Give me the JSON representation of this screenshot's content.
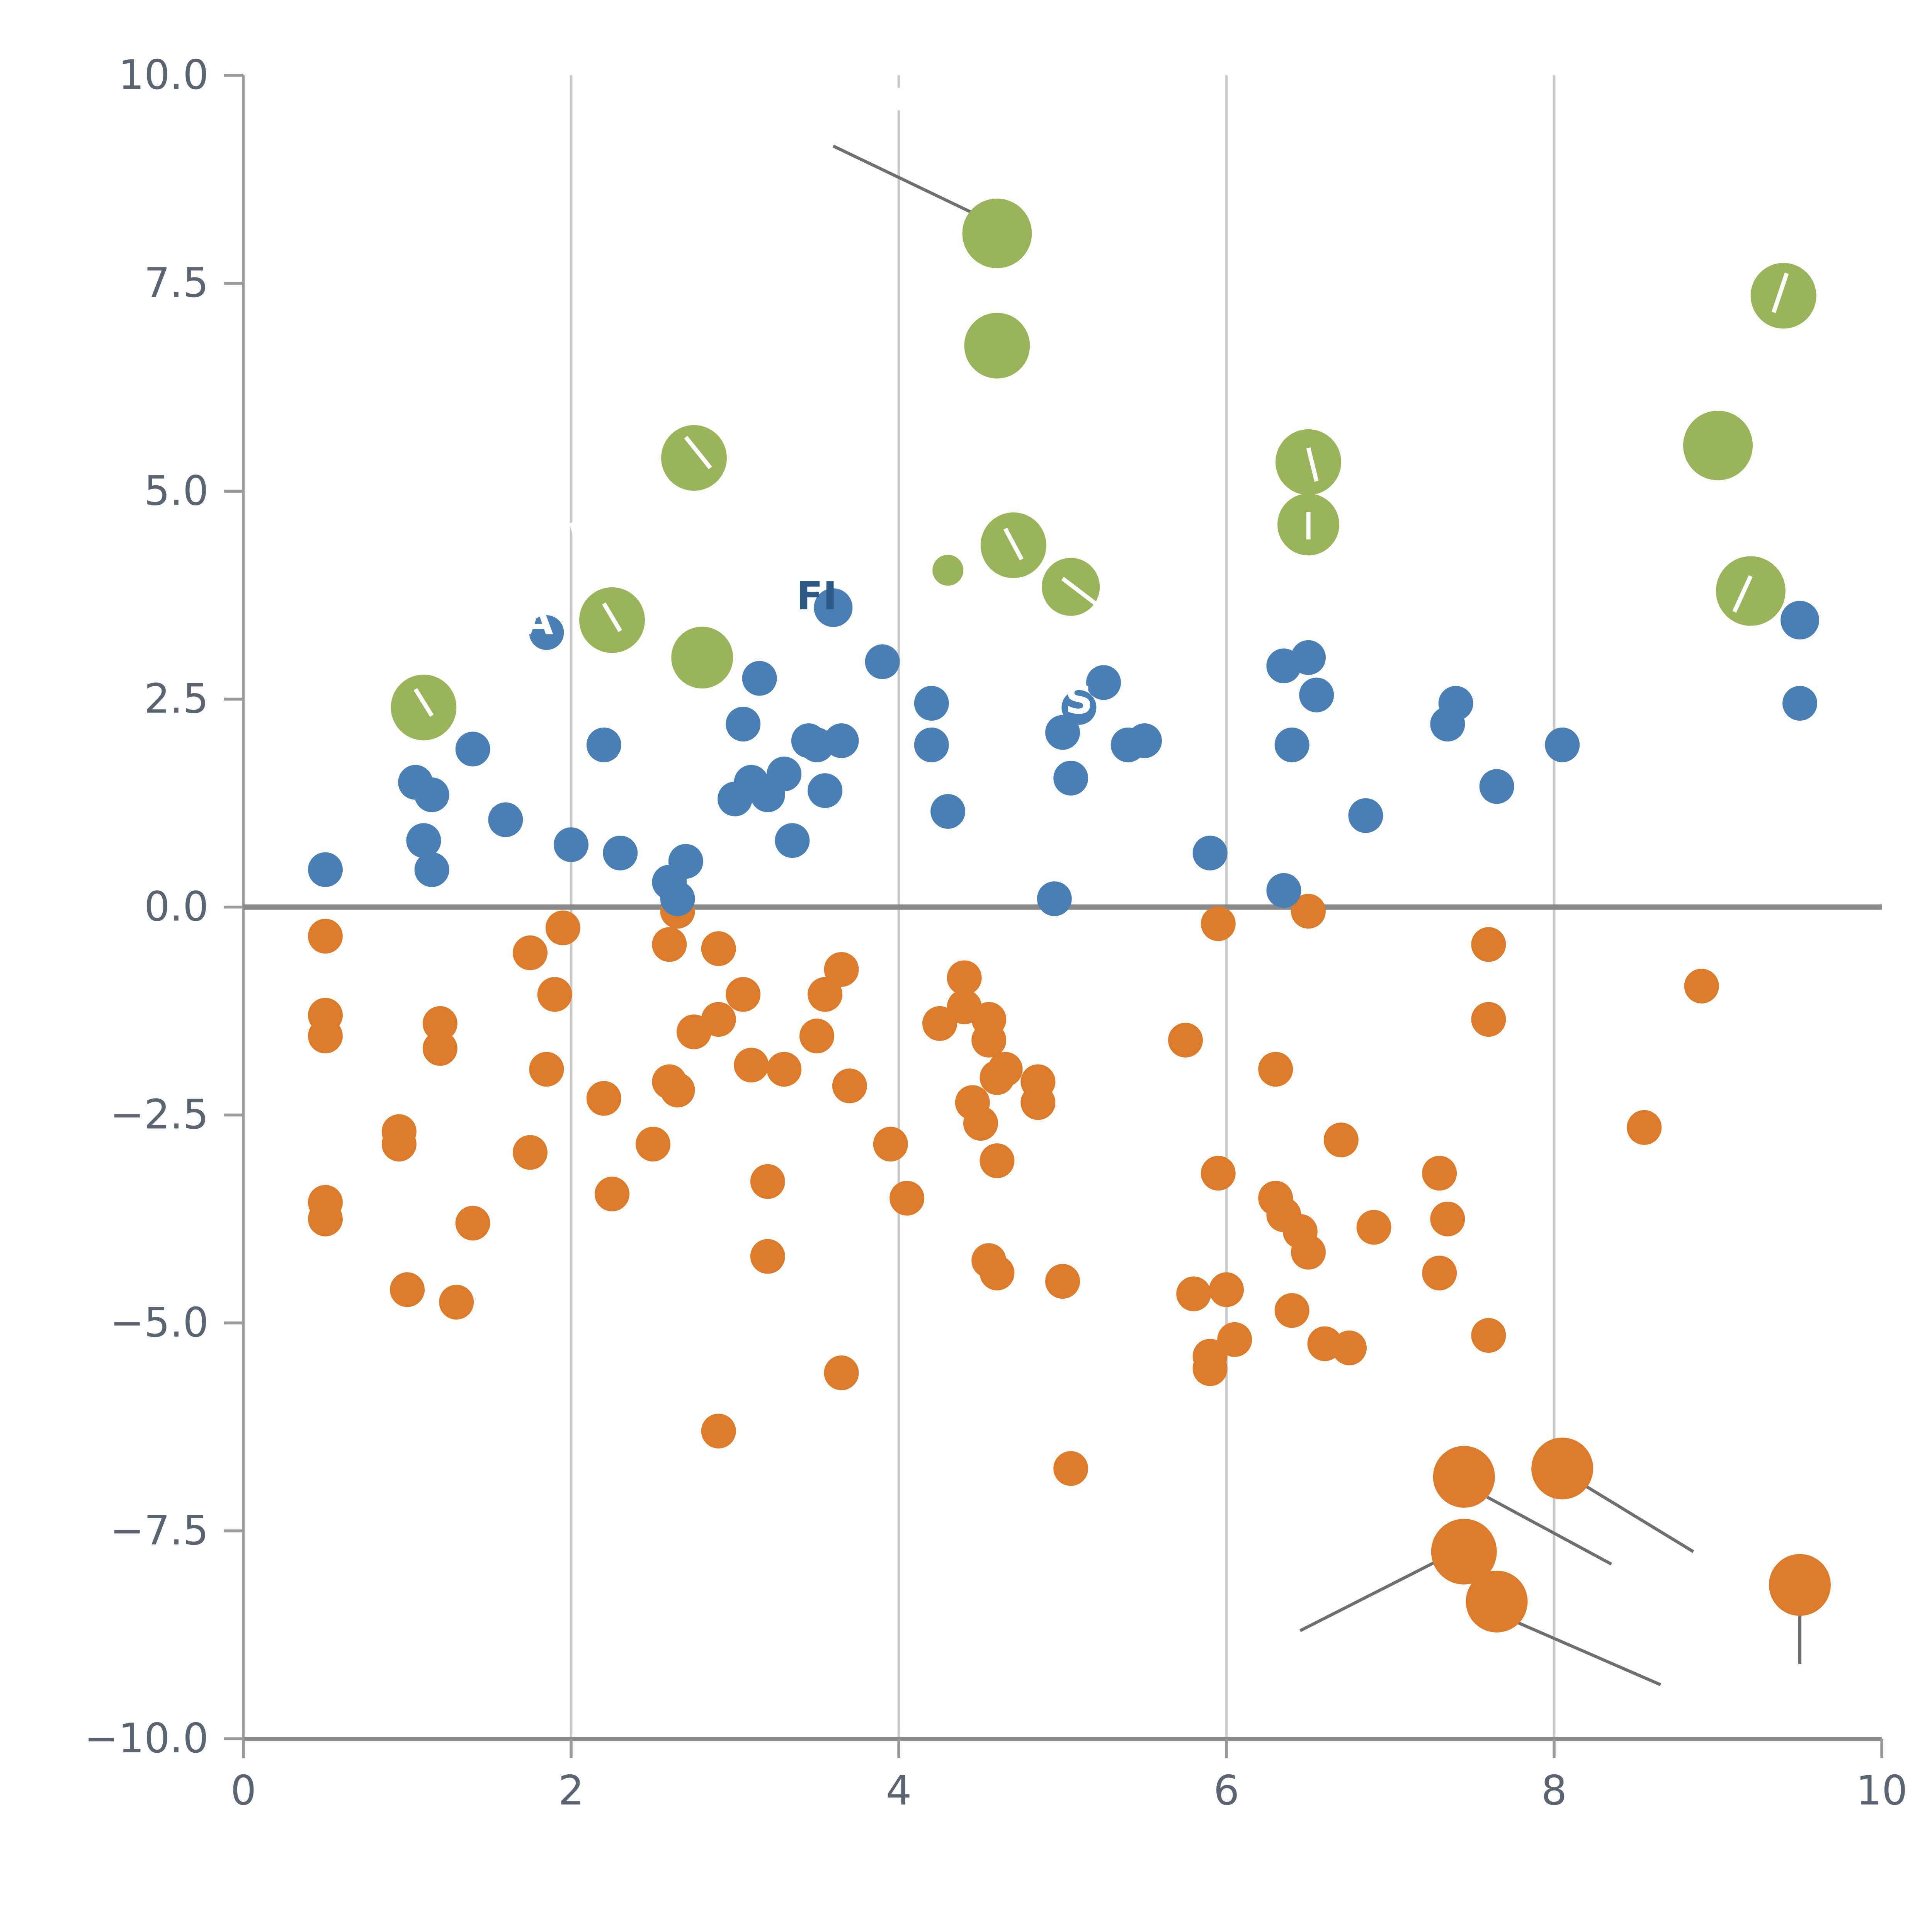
{
  "chart_data": {
    "type": "scatter",
    "title": "",
    "xlabel": "",
    "ylabel": "",
    "xlim": [
      0,
      10
    ],
    "ylim": [
      -10,
      10
    ],
    "xticks": [
      0,
      2,
      4,
      6,
      8,
      10
    ],
    "xtick_labels": [
      "0",
      "2",
      "4",
      "6",
      "8",
      "10"
    ],
    "yticks": [
      10,
      7.5,
      5,
      2.5,
      0,
      -2.5,
      -5,
      -7.5,
      -10
    ],
    "ytick_labels": [
      "10.0",
      "7.5",
      "5.0",
      "2.5",
      "0.0",
      "−2.5",
      "−5.0",
      "−7.5",
      "−10.0"
    ],
    "grid_x": [
      2,
      4,
      6,
      8
    ],
    "zero_line_y": 0,
    "legend": "none",
    "colors": {
      "grid": "#c9c9c9",
      "spine": "#9a9a9a",
      "zero_line": "#8a8a8a",
      "leader_line": "#6f6f6f",
      "tick_label": "#5a6472",
      "white_mark": "#ffffff"
    },
    "series": [
      {
        "name": "orange-group",
        "color": "#dd7b2c",
        "marker_radius": 9,
        "points": [
          [
            0.5,
            -0.35
          ],
          [
            1.75,
            -0.55
          ],
          [
            1.95,
            -0.25
          ],
          [
            2.6,
            -0.45
          ],
          [
            2.65,
            -0.05
          ],
          [
            2.9,
            -0.5
          ],
          [
            3.65,
            -0.75
          ],
          [
            4.4,
            -0.85
          ],
          [
            5.95,
            -0.2
          ],
          [
            6.5,
            -0.05
          ],
          [
            7.6,
            -0.45
          ],
          [
            8.9,
            -0.95
          ],
          [
            1.9,
            -1.05
          ],
          [
            3.05,
            -1.05
          ],
          [
            3.55,
            -1.05
          ],
          [
            4.4,
            -1.2
          ],
          [
            0.5,
            -1.3
          ],
          [
            2.9,
            -1.35
          ],
          [
            4.55,
            -1.35
          ],
          [
            7.6,
            -1.35
          ],
          [
            1.2,
            -1.4
          ],
          [
            4.25,
            -1.4
          ],
          [
            0.5,
            -1.55
          ],
          [
            2.75,
            -1.5
          ],
          [
            3.5,
            -1.55
          ],
          [
            4.55,
            -1.6
          ],
          [
            5.75,
            -1.6
          ],
          [
            1.2,
            -1.7
          ],
          [
            1.85,
            -1.95
          ],
          [
            3.1,
            -1.9
          ],
          [
            3.3,
            -1.95
          ],
          [
            4.65,
            -1.95
          ],
          [
            6.3,
            -1.95
          ],
          [
            4.6,
            -2.05
          ],
          [
            2.6,
            -2.1
          ],
          [
            3.7,
            -2.15
          ],
          [
            4.85,
            -2.1
          ],
          [
            2.65,
            -2.2
          ],
          [
            2.2,
            -2.3
          ],
          [
            4.45,
            -2.35
          ],
          [
            4.85,
            -2.35
          ],
          [
            4.5,
            -2.6
          ],
          [
            8.55,
            -2.65
          ],
          [
            0.95,
            -2.7
          ],
          [
            0.95,
            -2.85
          ],
          [
            2.5,
            -2.85
          ],
          [
            3.95,
            -2.85
          ],
          [
            6.7,
            -2.8
          ],
          [
            1.75,
            -2.95
          ],
          [
            4.6,
            -3.05
          ],
          [
            3.2,
            -3.3
          ],
          [
            5.95,
            -3.2
          ],
          [
            7.3,
            -3.2
          ],
          [
            2.25,
            -3.45
          ],
          [
            4.05,
            -3.5
          ],
          [
            6.3,
            -3.5
          ],
          [
            0.5,
            -3.55
          ],
          [
            6.35,
            -3.7
          ],
          [
            7.35,
            -3.75
          ],
          [
            0.5,
            -3.75
          ],
          [
            1.4,
            -3.8
          ],
          [
            6.9,
            -3.85
          ],
          [
            6.45,
            -3.9
          ],
          [
            3.2,
            -4.2
          ],
          [
            4.55,
            -4.25
          ],
          [
            4.6,
            -4.4
          ],
          [
            6.5,
            -4.15
          ],
          [
            1.0,
            -4.6
          ],
          [
            1.3,
            -4.75
          ],
          [
            5.0,
            -4.5
          ],
          [
            5.8,
            -4.65
          ],
          [
            6.0,
            -4.6
          ],
          [
            6.4,
            -4.85
          ],
          [
            7.3,
            -4.4
          ],
          [
            6.05,
            -5.2
          ],
          [
            5.9,
            -5.4
          ],
          [
            5.9,
            -5.55
          ],
          [
            6.6,
            -5.25
          ],
          [
            6.75,
            -5.3
          ],
          [
            7.6,
            -5.15
          ],
          [
            3.65,
            -5.6
          ],
          [
            2.9,
            -6.3
          ],
          [
            5.05,
            -6.75
          ],
          [
            7.45,
            -6.85,
            16
          ],
          [
            8.05,
            -6.75,
            16
          ],
          [
            7.45,
            -7.75,
            17
          ],
          [
            7.65,
            -8.35,
            16
          ],
          [
            9.5,
            -8.15,
            16
          ]
        ]
      },
      {
        "name": "blue-group",
        "color": "#4a7fb5",
        "marker_radius": 9,
        "points": [
          [
            0.5,
            0.45
          ],
          [
            1.05,
            1.5
          ],
          [
            1.1,
            0.8
          ],
          [
            1.15,
            1.35
          ],
          [
            1.15,
            0.45
          ],
          [
            1.4,
            1.9
          ],
          [
            1.6,
            1.05
          ],
          [
            1.85,
            3.3
          ],
          [
            2.0,
            0.75
          ],
          [
            2.2,
            1.95
          ],
          [
            2.3,
            0.65
          ],
          [
            2.6,
            0.3
          ],
          [
            2.65,
            0.1
          ],
          [
            2.7,
            0.55
          ],
          [
            3.0,
            1.3
          ],
          [
            3.05,
            2.2
          ],
          [
            3.1,
            1.5
          ],
          [
            3.15,
            2.75
          ],
          [
            3.2,
            1.35
          ],
          [
            3.3,
            1.6
          ],
          [
            3.35,
            0.8
          ],
          [
            3.45,
            2.0
          ],
          [
            3.5,
            1.95
          ],
          [
            3.55,
            1.4
          ],
          [
            3.6,
            3.6,
            10
          ],
          [
            3.65,
            2.0
          ],
          [
            3.9,
            2.95
          ],
          [
            4.2,
            2.45
          ],
          [
            4.2,
            1.95
          ],
          [
            4.3,
            1.15
          ],
          [
            4.95,
            0.1
          ],
          [
            5.0,
            2.1
          ],
          [
            5.05,
            1.55
          ],
          [
            5.1,
            2.4
          ],
          [
            5.25,
            2.7
          ],
          [
            5.4,
            1.95
          ],
          [
            5.5,
            2.0
          ],
          [
            5.9,
            0.65
          ],
          [
            6.35,
            0.2
          ],
          [
            6.35,
            2.9
          ],
          [
            6.4,
            1.95
          ],
          [
            6.5,
            3.0
          ],
          [
            6.55,
            2.55
          ],
          [
            6.85,
            1.1
          ],
          [
            7.35,
            2.2
          ],
          [
            7.4,
            2.45
          ],
          [
            7.65,
            1.45
          ],
          [
            8.05,
            1.95
          ],
          [
            9.5,
            3.45,
            10
          ],
          [
            9.5,
            2.45
          ]
        ]
      },
      {
        "name": "green-group",
        "color": "#9ab45c",
        "marker_radius": 17,
        "points": [
          [
            1.1,
            2.4,
            17
          ],
          [
            2.25,
            3.45,
            17
          ],
          [
            2.75,
            5.4,
            17
          ],
          [
            2.8,
            3.0,
            16
          ],
          [
            4.3,
            4.05,
            8
          ],
          [
            4.6,
            8.1,
            18
          ],
          [
            4.6,
            6.75,
            17
          ],
          [
            4.7,
            4.35,
            17
          ],
          [
            5.05,
            3.85,
            15
          ],
          [
            6.5,
            5.35,
            17
          ],
          [
            6.5,
            4.6,
            16
          ],
          [
            9.0,
            5.55,
            18
          ],
          [
            9.2,
            3.8,
            18
          ],
          [
            9.4,
            7.35,
            17
          ]
        ]
      }
    ],
    "leader_lines": [
      [
        3.6,
        9.15,
        4.5,
        8.3
      ],
      [
        6.45,
        -8.7,
        7.35,
        -7.8
      ],
      [
        7.55,
        -7.05,
        8.35,
        -7.9
      ],
      [
        8.1,
        -6.85,
        8.85,
        -7.75
      ],
      [
        7.6,
        -8.45,
        8.65,
        -9.35
      ],
      [
        9.5,
        -8.35,
        9.5,
        -9.1
      ]
    ],
    "white_marks": [
      [
        1.05,
        2.62,
        1.15,
        2.3
      ],
      [
        2.2,
        3.65,
        2.3,
        3.32
      ],
      [
        2.7,
        5.65,
        2.85,
        5.28
      ],
      [
        4.65,
        4.55,
        4.75,
        4.18
      ],
      [
        5.0,
        3.95,
        5.3,
        3.5
      ],
      [
        6.5,
        5.52,
        6.55,
        5.12
      ],
      [
        6.5,
        4.75,
        6.5,
        4.42
      ],
      [
        9.42,
        7.62,
        9.34,
        7.15
      ],
      [
        9.2,
        3.98,
        9.1,
        3.55
      ],
      [
        2.0,
        4.62,
        2.03,
        4.45
      ],
      [
        4.0,
        9.85,
        4.0,
        9.58
      ]
    ],
    "text_fragments": [
      {
        "text": "A",
        "x": 1.8,
        "y": 3.28,
        "color": "#ffffff",
        "size": 20,
        "weight": "bold"
      },
      {
        "text": "FI",
        "x": 3.5,
        "y": 3.58,
        "color": "#2c5985",
        "size": 20,
        "weight": "bold"
      },
      {
        "text": "S",
        "x": 5.1,
        "y": 2.33,
        "color": "#ffffff",
        "size": 20,
        "weight": "bold"
      }
    ]
  }
}
